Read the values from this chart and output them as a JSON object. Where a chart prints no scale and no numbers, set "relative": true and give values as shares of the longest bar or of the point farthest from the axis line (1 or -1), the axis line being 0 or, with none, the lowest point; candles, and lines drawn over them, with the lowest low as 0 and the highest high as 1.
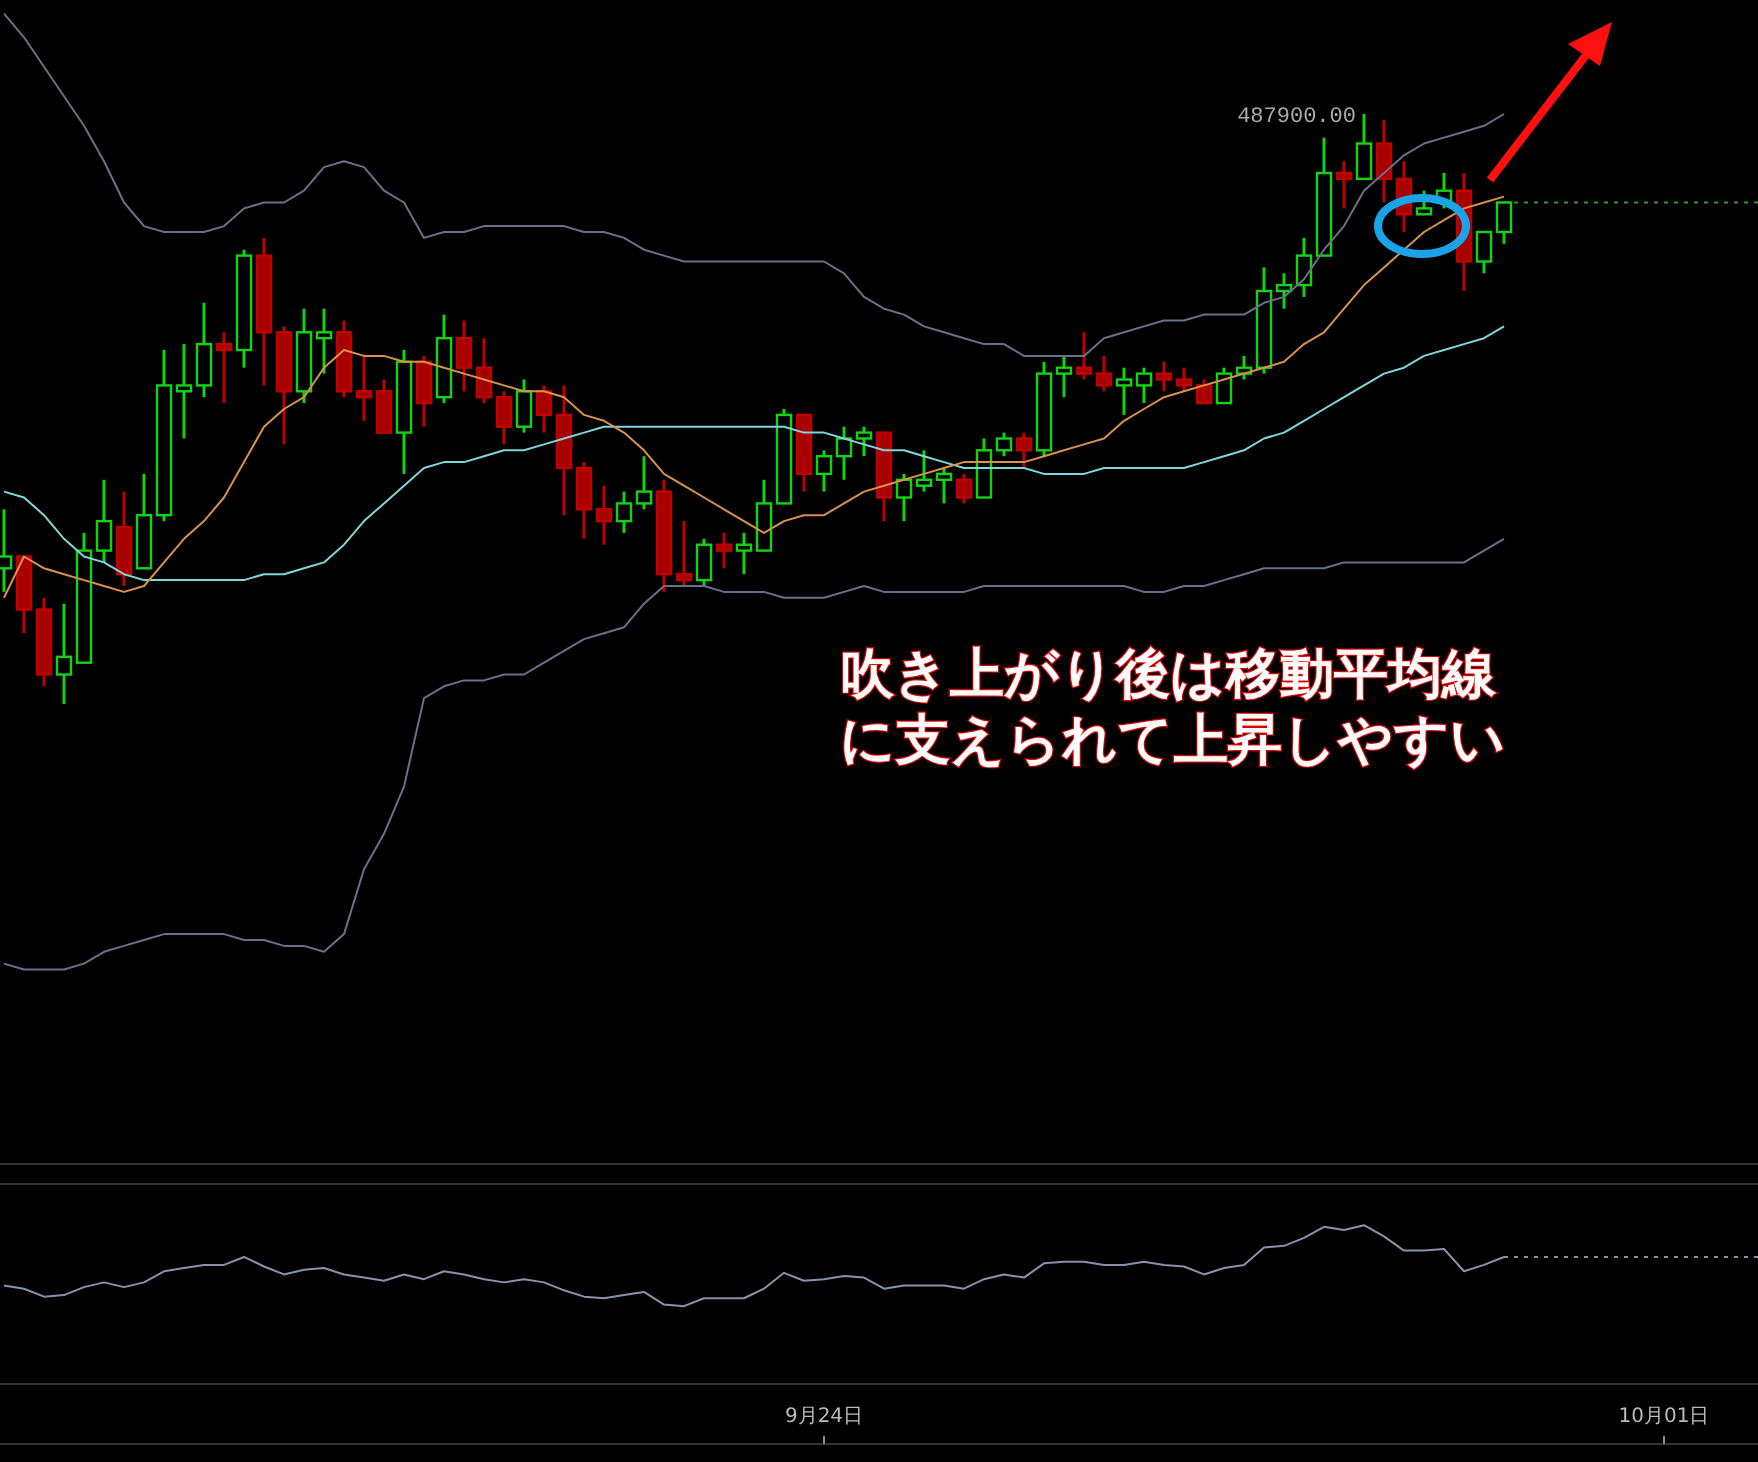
{
  "chart_data": [
    {
      "type": "candlestick",
      "relative": true,
      "tick_labels": false,
      "categories": [
        null,
        null,
        null,
        null,
        null,
        null,
        null,
        null,
        null,
        null,
        null,
        null,
        null,
        null,
        null,
        null,
        null,
        null,
        null,
        null,
        null,
        null,
        null,
        null,
        null,
        null,
        null,
        null,
        null,
        null,
        null,
        null,
        null,
        null,
        null,
        null,
        null,
        null,
        null,
        null,
        null,
        null,
        null,
        null,
        null,
        null,
        null,
        null,
        null,
        null,
        null,
        null,
        null,
        null,
        null,
        null,
        null,
        null,
        null,
        null,
        null,
        null,
        null,
        null,
        null,
        null,
        null,
        null,
        null,
        null,
        null,
        null,
        null,
        null,
        null,
        null,
        null,
        null,
        null,
        null,
        null,
        null,
        null,
        null,
        null,
        null,
        null,
        null
      ],
      "ohlc": [
        [
          0.23,
          0.33,
          0.19,
          0.25
        ],
        [
          0.25,
          0.25,
          0.12,
          0.16
        ],
        [
          0.16,
          0.18,
          0.03,
          0.05
        ],
        [
          0.05,
          0.17,
          0,
          0.08
        ],
        [
          0.07,
          0.29,
          0.07,
          0.26
        ],
        [
          0.26,
          0.38,
          0.24,
          0.31
        ],
        [
          0.3,
          0.36,
          0.2,
          0.22
        ],
        [
          0.23,
          0.39,
          0.23,
          0.32
        ],
        [
          0.32,
          0.6,
          0.31,
          0.54
        ],
        [
          0.53,
          0.61,
          0.45,
          0.54
        ],
        [
          0.54,
          0.68,
          0.52,
          0.61
        ],
        [
          0.61,
          0.63,
          0.51,
          0.6
        ],
        [
          0.6,
          0.77,
          0.57,
          0.76
        ],
        [
          0.76,
          0.79,
          0.54,
          0.63
        ],
        [
          0.63,
          0.64,
          0.44,
          0.53
        ],
        [
          0.53,
          0.67,
          0.51,
          0.63
        ],
        [
          0.62,
          0.67,
          0.56,
          0.63
        ],
        [
          0.63,
          0.65,
          0.52,
          0.53
        ],
        [
          0.53,
          0.59,
          0.48,
          0.52
        ],
        [
          0.53,
          0.55,
          0.46,
          0.46
        ],
        [
          0.46,
          0.6,
          0.39,
          0.58
        ],
        [
          0.58,
          0.59,
          0.47,
          0.51
        ],
        [
          0.52,
          0.66,
          0.51,
          0.62
        ],
        [
          0.62,
          0.65,
          0.53,
          0.57
        ],
        [
          0.57,
          0.62,
          0.51,
          0.52
        ],
        [
          0.52,
          0.53,
          0.44,
          0.47
        ],
        [
          0.47,
          0.55,
          0.46,
          0.53
        ],
        [
          0.53,
          0.54,
          0.46,
          0.49
        ],
        [
          0.49,
          0.54,
          0.32,
          0.4
        ],
        [
          0.4,
          0.41,
          0.28,
          0.33
        ],
        [
          0.33,
          0.37,
          0.27,
          0.31
        ],
        [
          0.31,
          0.36,
          0.29,
          0.34
        ],
        [
          0.34,
          0.42,
          0.33,
          0.36
        ],
        [
          0.36,
          0.38,
          0.19,
          0.22
        ],
        [
          0.22,
          0.31,
          0.2,
          0.21
        ],
        [
          0.21,
          0.28,
          0.2,
          0.27
        ],
        [
          0.27,
          0.29,
          0.23,
          0.26
        ],
        [
          0.26,
          0.29,
          0.22,
          0.27
        ],
        [
          0.26,
          0.38,
          0.26,
          0.34
        ],
        [
          0.34,
          0.5,
          0.34,
          0.49
        ],
        [
          0.49,
          0.49,
          0.36,
          0.39
        ],
        [
          0.39,
          0.43,
          0.36,
          0.42
        ],
        [
          0.42,
          0.47,
          0.38,
          0.45
        ],
        [
          0.45,
          0.47,
          0.42,
          0.46
        ],
        [
          0.46,
          0.46,
          0.31,
          0.35
        ],
        [
          0.35,
          0.39,
          0.31,
          0.38
        ],
        [
          0.37,
          0.43,
          0.36,
          0.38
        ],
        [
          0.38,
          0.4,
          0.34,
          0.39
        ],
        [
          0.38,
          0.39,
          0.34,
          0.35
        ],
        [
          0.35,
          0.45,
          0.35,
          0.43
        ],
        [
          0.43,
          0.46,
          0.42,
          0.45
        ],
        [
          0.45,
          0.46,
          0.4,
          0.43
        ],
        [
          0.43,
          0.58,
          0.42,
          0.56
        ],
        [
          0.56,
          0.59,
          0.52,
          0.57
        ],
        [
          0.57,
          0.63,
          0.55,
          0.56
        ],
        [
          0.56,
          0.59,
          0.53,
          0.54
        ],
        [
          0.54,
          0.57,
          0.49,
          0.55
        ],
        [
          0.54,
          0.57,
          0.51,
          0.56
        ],
        [
          0.56,
          0.58,
          0.53,
          0.55
        ],
        [
          0.55,
          0.57,
          0.53,
          0.54
        ],
        [
          0.54,
          0.55,
          0.51,
          0.51
        ],
        [
          0.51,
          0.57,
          0.51,
          0.56
        ],
        [
          0.56,
          0.59,
          0.55,
          0.57
        ],
        [
          0.57,
          0.74,
          0.56,
          0.7
        ],
        [
          0.7,
          0.73,
          0.67,
          0.71
        ],
        [
          0.71,
          0.79,
          0.69,
          0.76
        ],
        [
          0.76,
          0.96,
          0.76,
          0.9
        ],
        [
          0.9,
          0.92,
          0.84,
          0.89
        ],
        [
          0.89,
          1,
          0.89,
          0.95
        ],
        [
          0.95,
          0.99,
          0.85,
          0.89
        ],
        [
          0.89,
          0.92,
          0.8,
          0.83
        ],
        [
          0.83,
          0.87,
          0.83,
          0.84
        ],
        [
          0.85,
          0.9,
          0.84,
          0.87
        ],
        [
          0.87,
          0.9,
          0.7,
          0.75
        ],
        [
          0.75,
          0.8,
          0.73,
          0.8
        ],
        [
          0.8,
          0.85,
          0.78,
          0.85
        ],
        null,
        null,
        null,
        null,
        null,
        null,
        null,
        null,
        null,
        null,
        null,
        null
      ],
      "series": [
        {
          "type": "line",
          "color": "#66728a",
          "values": [
            1.17,
            1.13,
            1.08,
            1.03,
            0.98,
            0.92,
            0.85,
            0.81,
            0.8,
            0.8,
            0.8,
            0.81,
            0.84,
            0.85,
            0.85,
            0.87,
            0.91,
            0.92,
            0.91,
            0.87,
            0.85,
            0.79,
            0.8,
            0.8,
            0.81,
            0.81,
            0.81,
            0.81,
            0.81,
            0.8,
            0.8,
            0.79,
            0.77,
            0.76,
            0.75,
            0.75,
            0.75,
            0.75,
            0.75,
            0.75,
            0.75,
            0.75,
            0.73,
            0.69,
            0.67,
            0.66,
            0.64,
            0.63,
            0.62,
            0.61,
            0.61,
            0.59,
            0.59,
            0.59,
            0.59,
            0.62,
            0.63,
            0.64,
            0.65,
            0.65,
            0.66,
            0.66,
            0.66,
            0.68,
            0.69,
            0.72,
            0.77,
            0.81,
            0.87,
            0.9,
            0.93,
            0.95,
            0.96,
            0.97,
            0.98,
            1.0,
            null,
            null,
            null,
            null,
            null,
            null,
            null,
            null,
            null,
            null,
            null,
            null
          ]
        },
        {
          "type": "line",
          "color": "#7fd6dc",
          "values": [
            0.36,
            0.35,
            0.32,
            0.28,
            0.25,
            0.24,
            0.22,
            0.21,
            0.21,
            0.21,
            0.21,
            0.21,
            0.21,
            0.22,
            0.22,
            0.23,
            0.24,
            0.27,
            0.31,
            0.34,
            0.37,
            0.4,
            0.41,
            0.41,
            0.42,
            0.43,
            0.43,
            0.44,
            0.45,
            0.46,
            0.47,
            0.47,
            0.47,
            0.47,
            0.47,
            0.47,
            0.47,
            0.47,
            0.47,
            0.47,
            0.46,
            0.46,
            0.45,
            0.44,
            0.43,
            0.43,
            0.42,
            0.41,
            0.4,
            0.4,
            0.4,
            0.4,
            0.39,
            0.39,
            0.39,
            0.4,
            0.4,
            0.4,
            0.4,
            0.4,
            0.41,
            0.42,
            0.43,
            0.45,
            0.46,
            0.48,
            0.5,
            0.52,
            0.54,
            0.56,
            0.57,
            0.59,
            0.6,
            0.61,
            0.62,
            0.64,
            null,
            null,
            null,
            null,
            null,
            null,
            null,
            null,
            null,
            null,
            null,
            null
          ]
        },
        {
          "type": "line",
          "color": "#66728a",
          "values": [
            -0.44,
            -0.45,
            -0.45,
            -0.45,
            -0.44,
            -0.42,
            -0.41,
            -0.4,
            -0.39,
            -0.39,
            -0.39,
            -0.39,
            -0.4,
            -0.4,
            -0.41,
            -0.41,
            -0.42,
            -0.39,
            -0.28,
            -0.22,
            -0.14,
            0.01,
            0.03,
            0.04,
            0.04,
            0.05,
            0.05,
            0.07,
            0.09,
            0.11,
            0.12,
            0.13,
            0.17,
            0.2,
            0.2,
            0.2,
            0.19,
            0.19,
            0.19,
            0.18,
            0.18,
            0.18,
            0.19,
            0.2,
            0.19,
            0.19,
            0.19,
            0.19,
            0.19,
            0.2,
            0.2,
            0.2,
            0.2,
            0.2,
            0.2,
            0.2,
            0.2,
            0.19,
            0.19,
            0.2,
            0.2,
            0.21,
            0.22,
            0.23,
            0.23,
            0.23,
            0.23,
            0.24,
            0.24,
            0.24,
            0.24,
            0.24,
            0.24,
            0.24,
            0.26,
            0.28,
            null,
            null,
            null,
            null,
            null,
            null,
            null,
            null,
            null,
            null,
            null,
            null
          ]
        },
        {
          "type": "line",
          "color": "#d8924a",
          "values": [
            0.18,
            0.25,
            0.23,
            0.22,
            0.21,
            0.2,
            0.19,
            0.2,
            0.24,
            0.28,
            0.31,
            0.35,
            0.41,
            0.47,
            0.5,
            0.52,
            0.57,
            0.6,
            0.59,
            0.59,
            0.58,
            0.58,
            0.57,
            0.56,
            0.55,
            0.54,
            0.53,
            0.53,
            0.52,
            0.49,
            0.48,
            0.46,
            0.43,
            0.39,
            0.37,
            0.35,
            0.33,
            0.31,
            0.29,
            0.31,
            0.32,
            0.32,
            0.34,
            0.36,
            0.37,
            0.38,
            0.39,
            0.4,
            0.41,
            0.41,
            0.41,
            0.41,
            0.42,
            0.43,
            0.44,
            0.45,
            0.48,
            0.5,
            0.52,
            0.53,
            0.54,
            0.55,
            0.56,
            0.57,
            0.58,
            0.61,
            0.63,
            0.67,
            0.71,
            0.74,
            0.77,
            0.8,
            0.82,
            0.84,
            0.85,
            0.86,
            null,
            null,
            null,
            null,
            null,
            null,
            null,
            null,
            null,
            null,
            null,
            null
          ]
        }
      ],
      "ref_lines": [
        {
          "axis": "y",
          "value": 0.85,
          "color": "#2e9a2e",
          "line_style": "dotted"
        }
      ],
      "annotations": [
        "487900.00",
        "吹き上がり後は移動平均線に支えられて上昇しやすい"
      ]
    },
    {
      "type": "line",
      "relative": true,
      "tick_labels": "x",
      "categories": [
        null,
        null,
        null,
        null,
        null,
        null,
        null,
        null,
        null,
        null,
        null,
        null,
        null,
        null,
        null,
        null,
        null,
        null,
        null,
        null,
        null,
        null,
        null,
        null,
        null,
        null,
        null,
        null,
        null,
        null,
        null,
        null,
        null,
        null,
        null,
        null,
        null,
        null,
        null,
        null,
        null,
        "9月24日",
        null,
        null,
        null,
        null,
        null,
        null,
        null,
        null,
        null,
        null,
        null,
        null,
        null,
        null,
        null,
        null,
        null,
        null,
        null,
        null,
        null,
        null,
        null,
        null,
        null,
        null,
        null,
        null,
        null,
        null,
        null,
        null,
        null,
        null,
        null,
        null,
        null,
        null,
        null,
        null,
        null,
        "10月01日",
        null,
        null,
        null,
        null
      ],
      "series": [
        {
          "color": "#8793aa",
          "values": [
            0.62,
            0.6,
            0.55,
            0.56,
            0.61,
            0.64,
            0.61,
            0.64,
            0.71,
            0.73,
            0.75,
            0.75,
            0.8,
            0.74,
            0.69,
            0.72,
            0.73,
            0.69,
            0.67,
            0.65,
            0.69,
            0.66,
            0.71,
            0.69,
            0.66,
            0.64,
            0.66,
            0.64,
            0.59,
            0.55,
            0.54,
            0.56,
            0.58,
            0.5,
            0.49,
            0.54,
            0.54,
            0.54,
            0.6,
            0.7,
            0.65,
            0.66,
            0.68,
            0.67,
            0.6,
            0.62,
            0.62,
            0.62,
            0.6,
            0.66,
            0.69,
            0.67,
            0.76,
            0.77,
            0.77,
            0.75,
            0.75,
            0.77,
            0.75,
            0.74,
            0.69,
            0.73,
            0.75,
            0.86,
            0.87,
            0.92,
            0.99,
            0.97,
            1,
            0.93,
            0.84,
            0.84,
            0.85,
            0.71,
            0.75,
            0.8,
            null,
            null,
            null,
            null,
            null,
            null,
            null,
            null,
            null,
            null,
            null,
            null
          ]
        }
      ],
      "ref_lines": [
        {
          "axis": "y",
          "value": 0.8,
          "color": "#8793aa",
          "line_style": "dotted"
        }
      ]
    }
  ]
}
